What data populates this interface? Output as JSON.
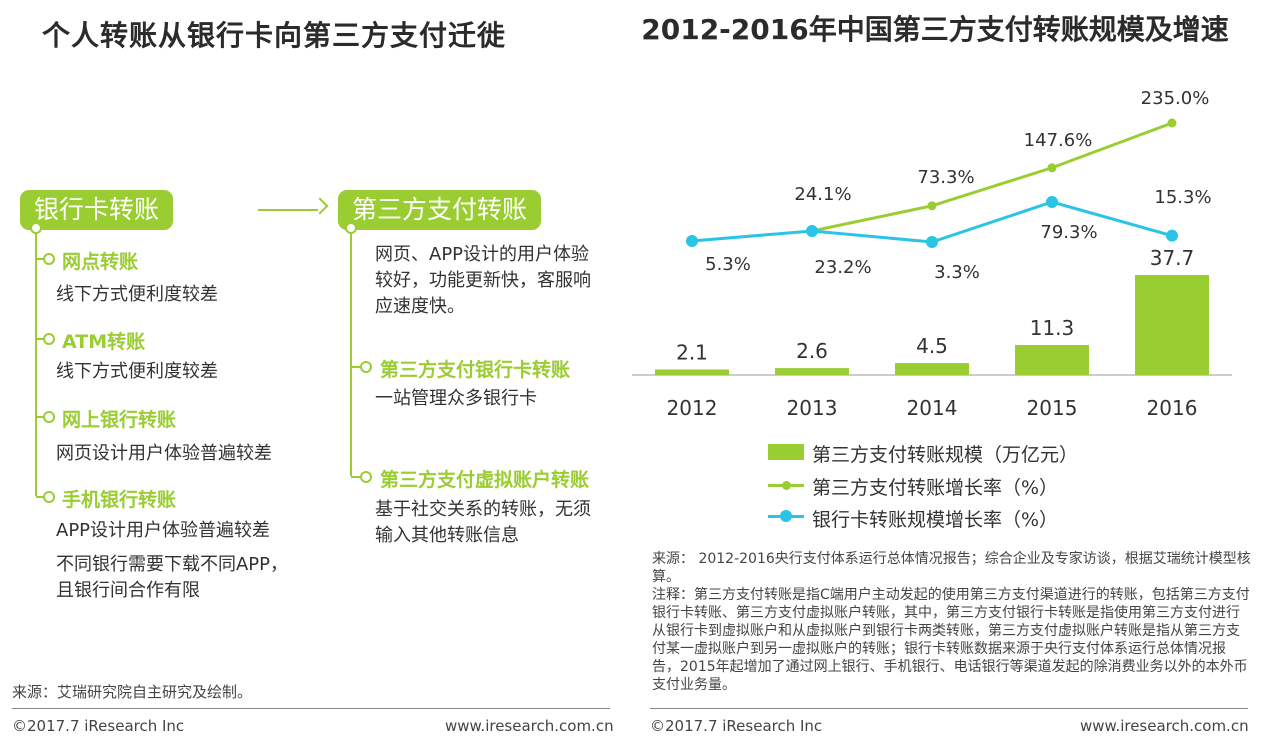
{
  "left": {
    "title": "个人转账从银行卡向第三方支付迁徙",
    "bank_label": "银行卡转账",
    "third_label": "第三方支付转账",
    "bank_items": [
      {
        "title": "网点转账",
        "desc": [
          "线下方式便利度较差"
        ]
      },
      {
        "title": "ATM转账",
        "desc": [
          "线下方式便利度较差"
        ]
      },
      {
        "title": "网上银行转账",
        "desc": [
          "网页设计用户体验普遍较差"
        ]
      },
      {
        "title": "手机银行转账",
        "desc": [
          "APP设计用户体验普遍较差",
          "不同银行需要下载不同APP，",
          "且银行间合作有限"
        ]
      }
    ],
    "third_intro": "网页、APP设计的用户体验较好，功能更新快，客服响应速度快。",
    "third_items": [
      {
        "title": "第三方支付银行卡转账",
        "desc": "一站管理众多银行卡"
      },
      {
        "title": "第三方支付虚拟账户转账",
        "desc": "基于社交关系的转账，无须输入其他转账信息"
      }
    ],
    "source": "来源：艾瑞研究院自主研究及绘制。",
    "copyright": "©2017.7 iResearch Inc",
    "website": "www.iresearch.com.cn"
  },
  "right": {
    "title": "2012-2016年中国第三方支付转账规模及增速",
    "source_note": "来源： 2012-2016央行支付体系运行总体情况报告；综合企业及专家访谈，根据艾瑞统计模型核算。",
    "note": "注释：第三方支付转账是指C端用户主动发起的使用第三方支付渠道进行的转账，包括第三方支付银行卡转账、第三方支付虚拟账户转账，其中，第三方支付银行卡转账是指使用第三方支付进行从银行卡到虚拟账户和从虚拟账户到银行卡两类转账，第三方支付虚拟账户转账是指从第三方支付某一虚拟账户到另一虚拟账户的转账；银行卡转账数据来源于央行支付体系运行总体情况报告，2015年起增加了通过网上银行、手机银行、电话银行等渠道发起的除消费业务以外的本外币支付业务量。",
    "copyright": "©2017.7 iResearch Inc",
    "website": "www.iresearch.com.cn"
  },
  "chart_data": {
    "type": "bar",
    "title": "2012-2016年中国第三方支付转账规模及增速",
    "categories": [
      "2012",
      "2013",
      "2014",
      "2015",
      "2016"
    ],
    "series": [
      {
        "name": "第三方支付转账规模（万亿元）",
        "kind": "bar",
        "values": [
          2.1,
          2.6,
          4.5,
          11.3,
          37.7
        ],
        "labels": [
          "2.1",
          "2.6",
          "4.5",
          "11.3",
          "37.7"
        ],
        "color": "#9acd32"
      },
      {
        "name": "第三方支付转账增长率（%）",
        "kind": "line",
        "values": [
          null,
          24.1,
          73.3,
          147.6,
          235.0
        ],
        "labels": [
          "",
          "24.1%",
          "73.3%",
          "147.6%",
          "235.0%"
        ],
        "color": "#9acd32"
      },
      {
        "name": "银行卡转账规模增长率（%）",
        "kind": "line",
        "values": [
          5.3,
          23.2,
          3.3,
          79.3,
          15.3
        ],
        "labels": [
          "5.3%",
          "23.2%",
          "3.3%",
          "79.3%",
          "15.3%"
        ],
        "color": "#29c4e6"
      }
    ],
    "xlabel": "",
    "ylabel": "",
    "grid": false,
    "legend": "bottom"
  }
}
